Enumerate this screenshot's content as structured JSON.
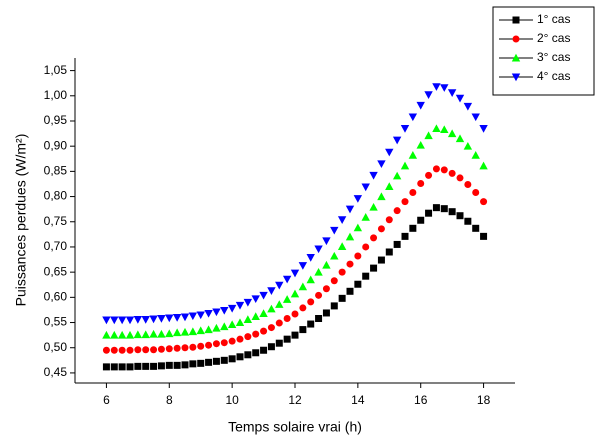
{
  "chart_data": {
    "type": "scatter",
    "xlabel": "Temps solaire vrai (h)",
    "ylabel": "Puissances perdues (W/m²)",
    "x": [
      6,
      6.25,
      6.5,
      6.75,
      7,
      7.25,
      7.5,
      7.75,
      8,
      8.25,
      8.5,
      8.75,
      9,
      9.25,
      9.5,
      9.75,
      10,
      10.25,
      10.5,
      10.75,
      11,
      11.25,
      11.5,
      11.75,
      12,
      12.25,
      12.5,
      12.75,
      13,
      13.25,
      13.5,
      13.75,
      14,
      14.25,
      14.5,
      14.75,
      15,
      15.25,
      15.5,
      15.75,
      16,
      16.25,
      16.5,
      16.75,
      17,
      17.25,
      17.5,
      17.75,
      18
    ],
    "series": [
      {
        "name": "1° cas",
        "color": "#000000",
        "marker": "square",
        "values": [
          0.462,
          0.462,
          0.462,
          0.462,
          0.463,
          0.463,
          0.463,
          0.464,
          0.465,
          0.465,
          0.466,
          0.468,
          0.469,
          0.471,
          0.473,
          0.475,
          0.478,
          0.482,
          0.486,
          0.49,
          0.495,
          0.502,
          0.509,
          0.517,
          0.525,
          0.536,
          0.547,
          0.558,
          0.569,
          0.583,
          0.598,
          0.612,
          0.626,
          0.642,
          0.658,
          0.674,
          0.69,
          0.705,
          0.721,
          0.737,
          0.753,
          0.767,
          0.778,
          0.776,
          0.77,
          0.762,
          0.751,
          0.737,
          0.721
        ]
      },
      {
        "name": "2° cas",
        "color": "#ff0000",
        "marker": "circle",
        "values": [
          0.495,
          0.495,
          0.495,
          0.495,
          0.496,
          0.496,
          0.496,
          0.497,
          0.498,
          0.499,
          0.5,
          0.501,
          0.503,
          0.505,
          0.508,
          0.51,
          0.513,
          0.517,
          0.522,
          0.527,
          0.533,
          0.54,
          0.549,
          0.558,
          0.567,
          0.579,
          0.591,
          0.604,
          0.617,
          0.633,
          0.65,
          0.666,
          0.682,
          0.7,
          0.718,
          0.736,
          0.754,
          0.772,
          0.79,
          0.808,
          0.826,
          0.842,
          0.855,
          0.853,
          0.846,
          0.837,
          0.824,
          0.808,
          0.79
        ]
      },
      {
        "name": "3° cas",
        "color": "#00ff00",
        "marker": "triangle-up",
        "values": [
          0.525,
          0.525,
          0.525,
          0.525,
          0.526,
          0.526,
          0.527,
          0.527,
          0.528,
          0.53,
          0.531,
          0.532,
          0.534,
          0.536,
          0.539,
          0.542,
          0.546,
          0.55,
          0.556,
          0.562,
          0.568,
          0.577,
          0.586,
          0.596,
          0.607,
          0.621,
          0.635,
          0.65,
          0.664,
          0.682,
          0.701,
          0.72,
          0.738,
          0.759,
          0.779,
          0.8,
          0.82,
          0.841,
          0.861,
          0.882,
          0.902,
          0.921,
          0.935,
          0.933,
          0.925,
          0.915,
          0.9,
          0.882,
          0.861
        ]
      },
      {
        "name": "4° cas",
        "color": "#0000ff",
        "marker": "triangle-down",
        "values": [
          0.555,
          0.555,
          0.555,
          0.555,
          0.556,
          0.556,
          0.557,
          0.558,
          0.559,
          0.56,
          0.561,
          0.563,
          0.565,
          0.568,
          0.571,
          0.574,
          0.578,
          0.584,
          0.59,
          0.597,
          0.604,
          0.613,
          0.624,
          0.636,
          0.648,
          0.663,
          0.679,
          0.696,
          0.712,
          0.733,
          0.754,
          0.775,
          0.796,
          0.819,
          0.842,
          0.865,
          0.888,
          0.912,
          0.935,
          0.958,
          0.981,
          1.002,
          1.018,
          1.016,
          1.006,
          0.995,
          0.979,
          0.958,
          0.935
        ]
      }
    ],
    "xlim": [
      5,
      19
    ],
    "xticks": [
      6,
      8,
      10,
      12,
      14,
      16,
      18
    ],
    "ylim": [
      0.43,
      1.075
    ],
    "yticks": [
      {
        "value": 0.45,
        "label": "0,45"
      },
      {
        "value": 0.5,
        "label": "0,50"
      },
      {
        "value": 0.55,
        "label": "0,55"
      },
      {
        "value": 0.6,
        "label": "0,60"
      },
      {
        "value": 0.65,
        "label": "0,65"
      },
      {
        "value": 0.7,
        "label": "0,70"
      },
      {
        "value": 0.75,
        "label": "0,75"
      },
      {
        "value": 0.8,
        "label": "0,80"
      },
      {
        "value": 0.85,
        "label": "0,85"
      },
      {
        "value": 0.9,
        "label": "0,90"
      },
      {
        "value": 0.95,
        "label": "0,95"
      },
      {
        "value": 1.0,
        "label": "1,00"
      },
      {
        "value": 1.05,
        "label": "1,05"
      }
    ],
    "grid": false,
    "legend": "upper right"
  }
}
